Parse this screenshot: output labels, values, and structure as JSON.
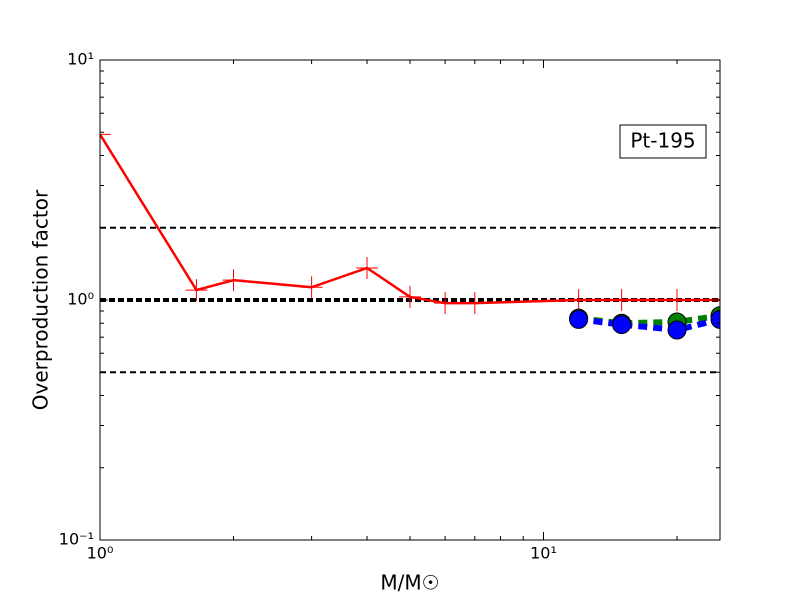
{
  "chart_data": {
    "type": "line",
    "xlabel": "M/M☉",
    "ylabel": "Overproduction factor",
    "annotation": "Pt-195",
    "xscale": "log",
    "yscale": "log",
    "xlim": [
      1,
      25
    ],
    "ylim": [
      0.1,
      10
    ],
    "xticks": [
      {
        "value": 1,
        "label": "10⁰"
      },
      {
        "value": 10,
        "label": "10¹"
      }
    ],
    "yticks": [
      {
        "value": 0.1,
        "label": "10⁻¹"
      },
      {
        "value": 1,
        "label": "10⁰"
      },
      {
        "value": 10,
        "label": "10¹"
      }
    ],
    "reference_lines": [
      0.5,
      1,
      2
    ],
    "series": [
      {
        "color": "#ff0000",
        "marker": "plus",
        "x": [
          1,
          1.65,
          2,
          3,
          4,
          5,
          6,
          7,
          12,
          15,
          20,
          25
        ],
        "values": [
          4.9,
          1.1,
          1.21,
          1.13,
          1.36,
          1.03,
          0.97,
          0.97,
          1.0,
          1.0,
          1.0,
          1.0
        ]
      },
      {
        "color": "#008000",
        "marker": "circle",
        "x": [
          12,
          15,
          20,
          25
        ],
        "values": [
          0.84,
          0.8,
          0.81,
          0.86
        ]
      },
      {
        "color": "#0000ff",
        "marker": "circle",
        "x": [
          12,
          15,
          20,
          25
        ],
        "values": [
          0.83,
          0.79,
          0.75,
          0.83
        ]
      }
    ]
  }
}
